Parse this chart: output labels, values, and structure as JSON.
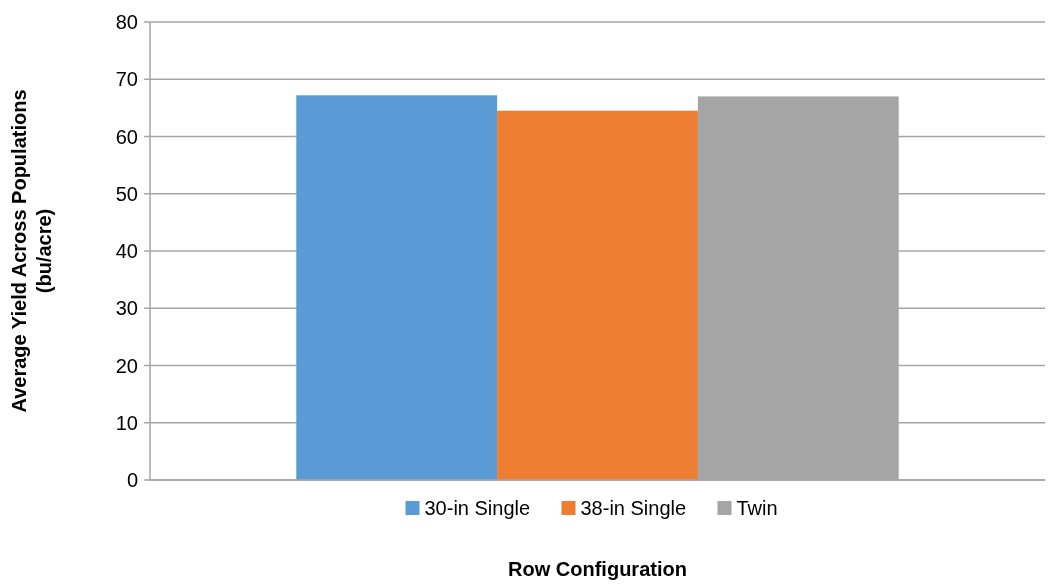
{
  "chart_data": {
    "type": "bar",
    "categories": [
      null
    ],
    "xlabel": "Row Configuration",
    "ylabel": "Average Yield Across Populations (bu/acre)",
    "ylim": [
      0,
      80
    ],
    "yticks": [
      0,
      10,
      20,
      30,
      40,
      50,
      60,
      70,
      80
    ],
    "grid": "y",
    "legend": "bottom",
    "series": [
      {
        "name": "30-in Single",
        "color": "#5b9bd5",
        "values": [
          67.2
        ]
      },
      {
        "name": "38-in Single",
        "color": "#ed7d31",
        "values": [
          64.5
        ]
      },
      {
        "name": "Twin",
        "color": "#a5a5a5",
        "values": [
          67.0
        ]
      }
    ]
  }
}
